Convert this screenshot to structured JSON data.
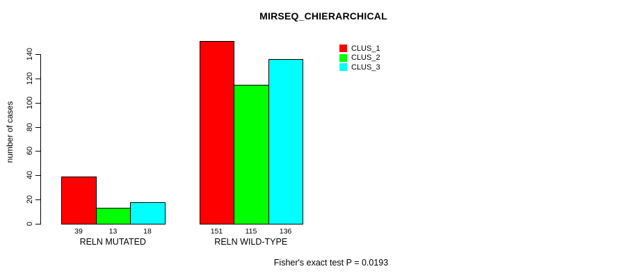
{
  "chart_data": {
    "type": "bar",
    "title": "MIRSEQ_CHIERARCHICAL",
    "ylabel": "number of cases",
    "xlabel": "",
    "note": "Fisher's exact test P = 0.0193",
    "categories": [
      "RELN MUTATED",
      "RELN WILD-TYPE"
    ],
    "series": [
      {
        "name": "CLUS_1",
        "color": "#ff0000",
        "values": [
          39,
          151
        ]
      },
      {
        "name": "CLUS_2",
        "color": "#00ff00",
        "values": [
          13,
          115
        ]
      },
      {
        "name": "CLUS_3",
        "color": "#00ffff",
        "values": [
          18,
          136
        ]
      }
    ],
    "y_ticks": [
      0,
      20,
      40,
      60,
      80,
      100,
      120,
      140
    ],
    "ylim": [
      0,
      155
    ],
    "show_bar_values": true,
    "bar_border_color": "#000000",
    "legend_position": "top-right",
    "grid": false,
    "background": "#ffffff"
  }
}
